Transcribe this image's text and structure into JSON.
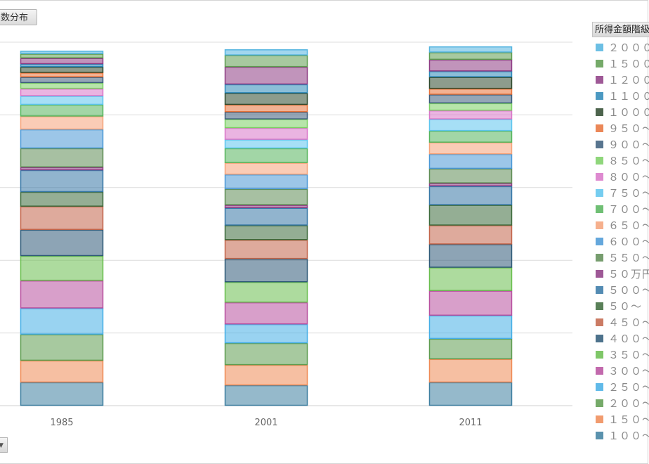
{
  "header": {
    "title": "数分布"
  },
  "legend": {
    "title": "所得金額階級"
  },
  "chart_data": {
    "type": "bar",
    "stacked": true,
    "categories": [
      "1985",
      "2001",
      "2011"
    ],
    "ylim": [
      0,
      125
    ],
    "gridlines": [
      25,
      50,
      75,
      100,
      125
    ],
    "series": [
      {
        "name": "１００～",
        "color": "#3e7fa0",
        "values": [
          8,
          7,
          8
        ]
      },
      {
        "name": "１５０～",
        "color": "#ef8a55",
        "values": [
          7.5,
          7,
          8
        ]
      },
      {
        "name": "２００～",
        "color": "#5e9c50",
        "values": [
          9,
          7.5,
          7
        ]
      },
      {
        "name": "２５０～",
        "color": "#45aee6",
        "values": [
          9,
          6.5,
          8
        ]
      },
      {
        "name": "３００～",
        "color": "#b8509f",
        "values": [
          9.5,
          7.5,
          8.5
        ]
      },
      {
        "name": "３５０～",
        "color": "#69be4e",
        "values": [
          8.5,
          7,
          8
        ]
      },
      {
        "name": "４００～",
        "color": "#2f5a78",
        "values": [
          9,
          8,
          8
        ]
      },
      {
        "name": "４５０～",
        "color": "#c2654a",
        "values": [
          8,
          6.5,
          6.5
        ]
      },
      {
        "name": "５０～",
        "color": "#3d6b3c",
        "values": [
          5,
          5,
          7
        ]
      },
      {
        "name": "５００～",
        "color": "#3677a6",
        "values": [
          7.5,
          6,
          6.5
        ]
      },
      {
        "name": "５０万円",
        "color": "#8e3c84",
        "values": [
          1,
          1,
          1
        ]
      },
      {
        "name": "５５０～",
        "color": "#5f8d55",
        "values": [
          6.5,
          5.5,
          5
        ]
      },
      {
        "name": "６００～",
        "color": "#4a98d6",
        "values": [
          6.5,
          5,
          5
        ]
      },
      {
        "name": "６５０～",
        "color": "#f5a37a",
        "values": [
          4.5,
          4,
          4
        ]
      },
      {
        "name": "７００～",
        "color": "#56b55c",
        "values": [
          4,
          5,
          4
        ]
      },
      {
        "name": "７５０～",
        "color": "#5dc5ee",
        "values": [
          3,
          3,
          4
        ]
      },
      {
        "name": "８００～",
        "color": "#d976c8",
        "values": [
          2.5,
          4,
          3
        ]
      },
      {
        "name": "８５０～",
        "color": "#7ccf64",
        "values": [
          2,
          3,
          2.5
        ]
      },
      {
        "name": "９００～",
        "color": "#3c5d7c",
        "values": [
          2,
          2.5,
          3
        ]
      },
      {
        "name": "９５０～",
        "color": "#e8733a",
        "values": [
          1.5,
          2.5,
          2
        ]
      },
      {
        "name": "１０００",
        "color": "#2f4a2e",
        "values": [
          2,
          4,
          4
        ]
      },
      {
        "name": "１１００",
        "color": "#2c88b8",
        "values": [
          1,
          3,
          2
        ]
      },
      {
        "name": "１２００",
        "color": "#8e3c84",
        "values": [
          2,
          6,
          4
        ]
      },
      {
        "name": "１５００",
        "color": "#5e9c50",
        "values": [
          1.5,
          4,
          2.5
        ]
      },
      {
        "name": "２０００",
        "color": "#53b4e0",
        "values": [
          1,
          2,
          2
        ]
      }
    ]
  }
}
